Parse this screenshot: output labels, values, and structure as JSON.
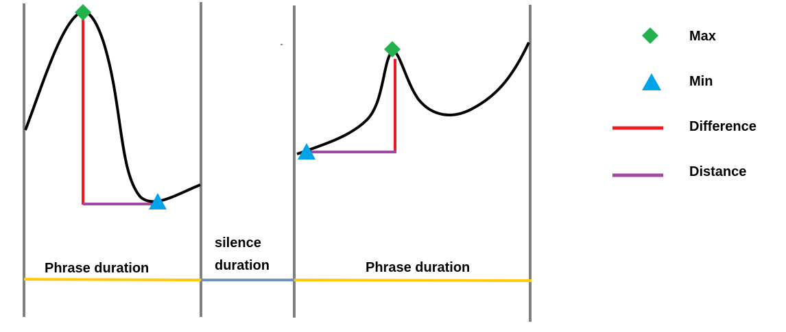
{
  "labels": {
    "phrase_duration_left": "Phrase duration",
    "silence_duration_line1": "silence",
    "silence_duration_line2": "duration",
    "phrase_duration_right": "Phrase duration"
  },
  "legend": {
    "max": "Max",
    "min": "Min",
    "difference": "Difference",
    "distance": "Distance"
  },
  "colors": {
    "boundary": "#808080",
    "curve": "#000000",
    "max_marker": "#22b14c",
    "min_marker": "#00a2e8",
    "difference": "#ed1c24",
    "distance": "#a349a4",
    "phrase_duration": "#ffc90e",
    "silence_duration": "#7092be"
  },
  "icons": {
    "max": "green-diamond-icon",
    "min": "blue-triangle-icon",
    "difference": "red-line-icon",
    "distance": "purple-line-icon"
  }
}
